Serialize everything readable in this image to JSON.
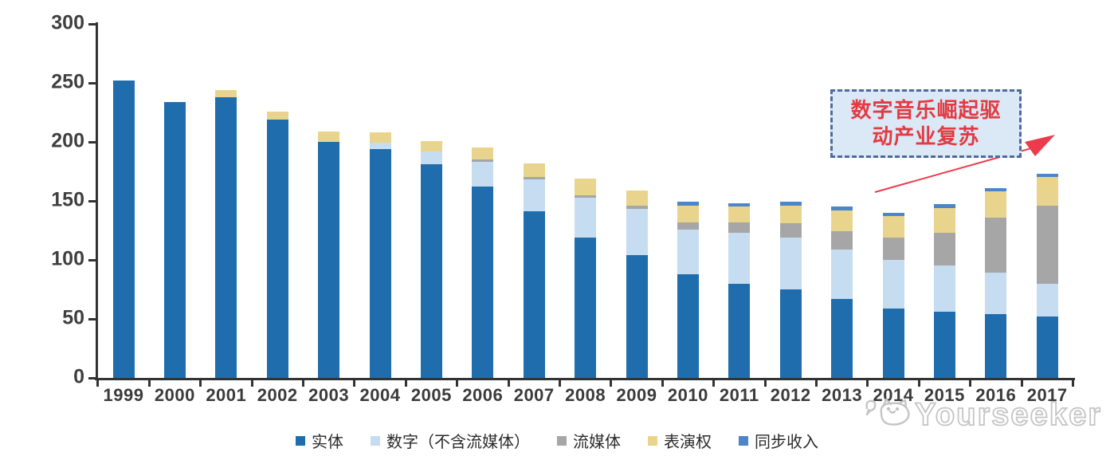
{
  "chart_data": {
    "type": "bar",
    "stacked": true,
    "title": "",
    "categories": [
      "1999",
      "2000",
      "2001",
      "2002",
      "2003",
      "2004",
      "2005",
      "2006",
      "2007",
      "2008",
      "2009",
      "2010",
      "2011",
      "2012",
      "2013",
      "2014",
      "2015",
      "2016",
      "2017"
    ],
    "series": [
      {
        "key": "physical",
        "name": "实体",
        "color": "#1F6DAD",
        "values": [
          252,
          234,
          238,
          219,
          200,
          194,
          181,
          162,
          141,
          119,
          104,
          88,
          80,
          75,
          67,
          59,
          56,
          54,
          52
        ]
      },
      {
        "key": "digital",
        "name": "数字（不含流媒体）",
        "color": "#C6DCF1",
        "values": [
          0,
          0,
          0,
          0,
          0,
          5,
          11,
          21,
          27,
          34,
          39,
          38,
          43,
          44,
          42,
          41,
          39,
          35,
          28
        ]
      },
      {
        "key": "streaming",
        "name": "流媒体",
        "color": "#A6A6A6",
        "values": [
          0,
          0,
          0,
          0,
          0,
          0,
          0,
          2,
          2,
          2,
          3,
          6,
          9,
          12,
          15,
          19,
          28,
          47,
          66
        ]
      },
      {
        "key": "performance",
        "name": "表演权",
        "color": "#E8D48C",
        "values": [
          0,
          0,
          6,
          7,
          9,
          9,
          9,
          10,
          12,
          14,
          13,
          14,
          13,
          15,
          18,
          18,
          21,
          22,
          24
        ]
      },
      {
        "key": "sync",
        "name": "同步收入",
        "color": "#4C86C8",
        "values": [
          0,
          0,
          0,
          0,
          0,
          0,
          0,
          0,
          0,
          0,
          0,
          3,
          3,
          3,
          3,
          3,
          3,
          3,
          3
        ]
      }
    ],
    "ylim": [
      0,
      300
    ],
    "yticks": [
      0,
      50,
      100,
      150,
      200,
      250,
      300
    ],
    "grid": false,
    "legend_position": "bottom",
    "axis_color": "#333333"
  },
  "annotation": {
    "lines": [
      "数字音乐崛起驱",
      "动产业复苏"
    ],
    "text_color": "#E23B41",
    "border_color": "#50699B",
    "fill_color": "#DBE8F6",
    "arrow_color": "#ED3B4D"
  },
  "watermark": {
    "text": "Yourseeker",
    "icon": "cat-logo-icon",
    "color": "#c5c5c5"
  }
}
